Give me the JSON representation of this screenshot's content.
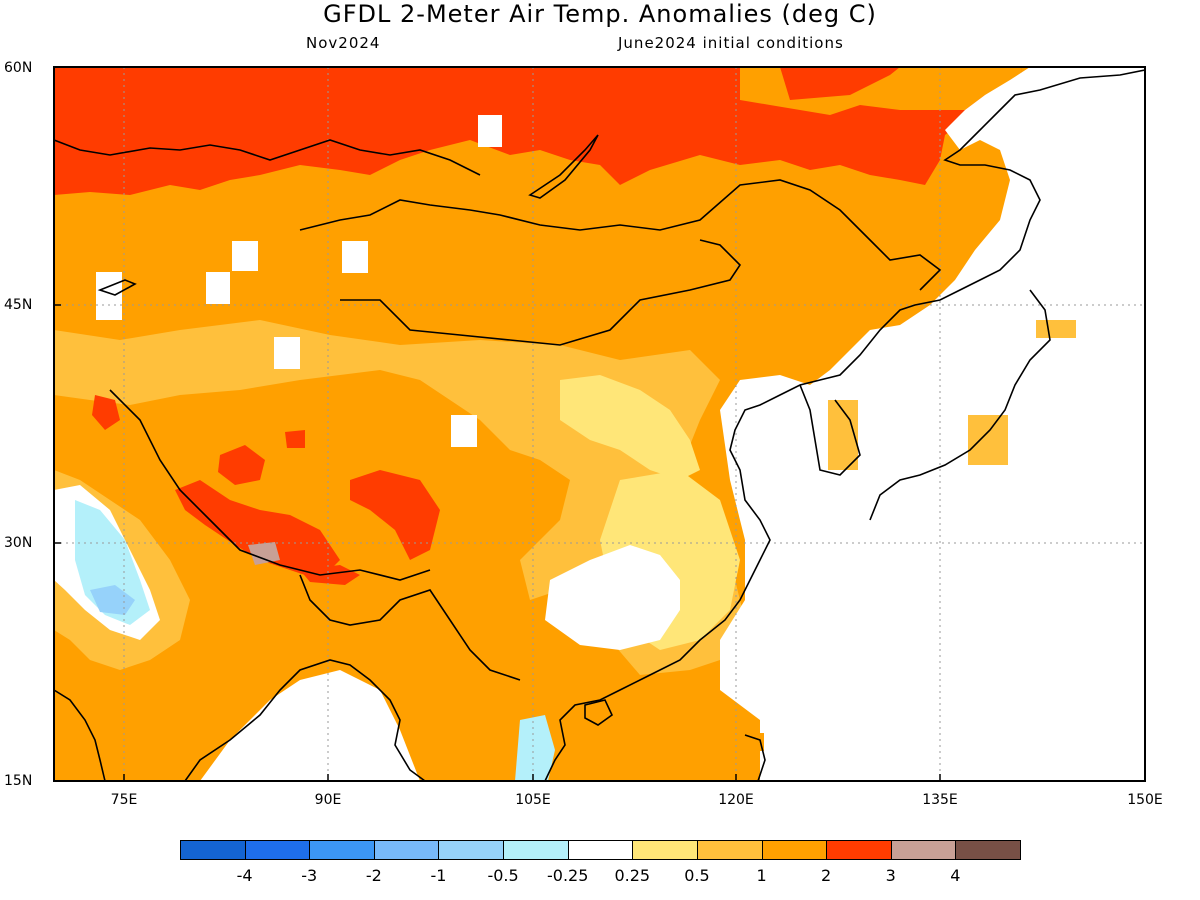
{
  "header": {
    "title": "GFDL 2-Meter Air Temp. Anomalies (deg C)",
    "month": "Nov2024",
    "initial_conditions": "June2024 initial conditions"
  },
  "axes": {
    "lat_labels": [
      "60N",
      "45N",
      "30N",
      "15N"
    ],
    "lon_labels": [
      "75E",
      "90E",
      "105E",
      "120E",
      "135E",
      "150E"
    ]
  },
  "colorbar": {
    "labels": [
      "-4",
      "-3",
      "-2",
      "-1",
      "-0.5",
      "-0.25",
      "0.25",
      "0.5",
      "1",
      "2",
      "3",
      "4"
    ],
    "colors": [
      "#1464d2",
      "#1e6eeb",
      "#3c96f5",
      "#78b9fa",
      "#96d2fa",
      "#b4f0fa",
      "#ffffff",
      "#ffe678",
      "#ffc03c",
      "#ffa000",
      "#ff3c00",
      "#c8a096",
      "#785046"
    ]
  }
}
